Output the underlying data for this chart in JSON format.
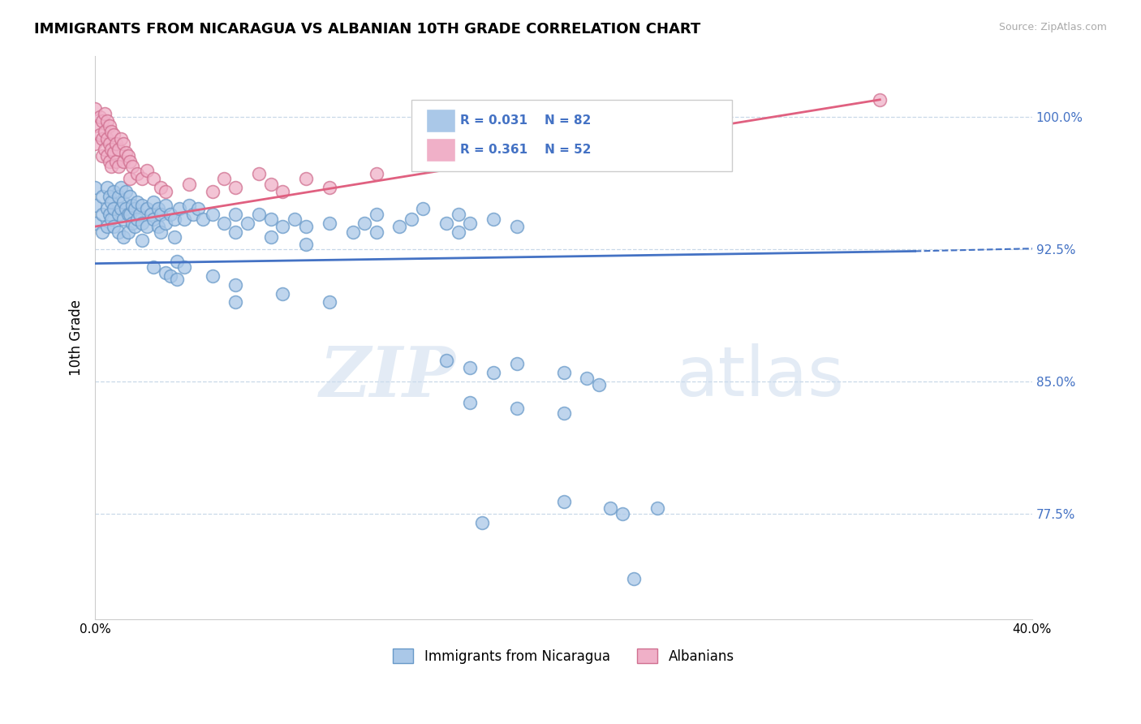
{
  "title": "IMMIGRANTS FROM NICARAGUA VS ALBANIAN 10TH GRADE CORRELATION CHART",
  "source_text": "Source: ZipAtlas.com",
  "ylabel": "10th Grade",
  "xlim": [
    0.0,
    0.4
  ],
  "ylim": [
    0.715,
    1.035
  ],
  "yticks": [
    0.775,
    0.85,
    0.925,
    1.0
  ],
  "ytick_labels": [
    "77.5%",
    "85.0%",
    "92.5%",
    "100.0%"
  ],
  "xticks": [
    0.0,
    0.4
  ],
  "xtick_labels": [
    "0.0%",
    "40.0%"
  ],
  "legend_r1": "R = 0.031",
  "legend_n1": "N = 82",
  "legend_r2": "R = 0.361",
  "legend_n2": "N = 52",
  "background_color": "#ffffff",
  "grid_color": "#c8d8e8",
  "watermark_zip": "ZIP",
  "watermark_atlas": "atlas",
  "blue_color": "#aac8e8",
  "pink_color": "#f0b0c8",
  "blue_line_color": "#4472c4",
  "pink_line_color": "#e06080",
  "blue_trendline_solid": [
    [
      0.0,
      0.917
    ],
    [
      0.35,
      0.924
    ]
  ],
  "blue_trendline_dashed": [
    [
      0.35,
      0.924
    ],
    [
      0.4,
      0.9255
    ]
  ],
  "pink_trendline": [
    [
      0.0,
      0.938
    ],
    [
      0.335,
      1.01
    ]
  ],
  "scatter_blue": [
    [
      0.0,
      0.96
    ],
    [
      0.0,
      0.95
    ],
    [
      0.0,
      0.94
    ],
    [
      0.003,
      0.955
    ],
    [
      0.003,
      0.945
    ],
    [
      0.003,
      0.935
    ],
    [
      0.005,
      0.96
    ],
    [
      0.005,
      0.948
    ],
    [
      0.005,
      0.938
    ],
    [
      0.006,
      0.955
    ],
    [
      0.006,
      0.945
    ],
    [
      0.007,
      0.952
    ],
    [
      0.007,
      0.942
    ],
    [
      0.008,
      0.958
    ],
    [
      0.008,
      0.948
    ],
    [
      0.008,
      0.938
    ],
    [
      0.01,
      0.955
    ],
    [
      0.01,
      0.945
    ],
    [
      0.01,
      0.935
    ],
    [
      0.011,
      0.96
    ],
    [
      0.011,
      0.948
    ],
    [
      0.012,
      0.952
    ],
    [
      0.012,
      0.942
    ],
    [
      0.012,
      0.932
    ],
    [
      0.013,
      0.958
    ],
    [
      0.013,
      0.948
    ],
    [
      0.014,
      0.945
    ],
    [
      0.014,
      0.935
    ],
    [
      0.015,
      0.955
    ],
    [
      0.015,
      0.945
    ],
    [
      0.016,
      0.95
    ],
    [
      0.016,
      0.94
    ],
    [
      0.017,
      0.948
    ],
    [
      0.017,
      0.938
    ],
    [
      0.018,
      0.952
    ],
    [
      0.018,
      0.942
    ],
    [
      0.019,
      0.945
    ],
    [
      0.02,
      0.95
    ],
    [
      0.02,
      0.94
    ],
    [
      0.02,
      0.93
    ],
    [
      0.022,
      0.948
    ],
    [
      0.022,
      0.938
    ],
    [
      0.024,
      0.945
    ],
    [
      0.025,
      0.952
    ],
    [
      0.025,
      0.942
    ],
    [
      0.027,
      0.948
    ],
    [
      0.027,
      0.938
    ],
    [
      0.028,
      0.945
    ],
    [
      0.028,
      0.935
    ],
    [
      0.03,
      0.95
    ],
    [
      0.03,
      0.94
    ],
    [
      0.032,
      0.945
    ],
    [
      0.034,
      0.942
    ],
    [
      0.034,
      0.932
    ],
    [
      0.036,
      0.948
    ],
    [
      0.038,
      0.942
    ],
    [
      0.04,
      0.95
    ],
    [
      0.042,
      0.945
    ],
    [
      0.044,
      0.948
    ],
    [
      0.046,
      0.942
    ],
    [
      0.05,
      0.945
    ],
    [
      0.055,
      0.94
    ],
    [
      0.06,
      0.945
    ],
    [
      0.06,
      0.935
    ],
    [
      0.065,
      0.94
    ],
    [
      0.07,
      0.945
    ],
    [
      0.075,
      0.942
    ],
    [
      0.075,
      0.932
    ],
    [
      0.08,
      0.938
    ],
    [
      0.085,
      0.942
    ],
    [
      0.09,
      0.938
    ],
    [
      0.09,
      0.928
    ],
    [
      0.1,
      0.94
    ],
    [
      0.11,
      0.935
    ],
    [
      0.115,
      0.94
    ],
    [
      0.12,
      0.945
    ],
    [
      0.12,
      0.935
    ],
    [
      0.13,
      0.938
    ],
    [
      0.135,
      0.942
    ],
    [
      0.14,
      0.948
    ],
    [
      0.15,
      0.94
    ],
    [
      0.155,
      0.945
    ],
    [
      0.155,
      0.935
    ],
    [
      0.16,
      0.94
    ],
    [
      0.17,
      0.942
    ],
    [
      0.18,
      0.938
    ],
    [
      0.025,
      0.915
    ],
    [
      0.03,
      0.912
    ],
    [
      0.032,
      0.91
    ],
    [
      0.035,
      0.918
    ],
    [
      0.035,
      0.908
    ],
    [
      0.038,
      0.915
    ],
    [
      0.05,
      0.91
    ],
    [
      0.06,
      0.905
    ],
    [
      0.06,
      0.895
    ],
    [
      0.08,
      0.9
    ],
    [
      0.1,
      0.895
    ],
    [
      0.15,
      0.862
    ],
    [
      0.16,
      0.858
    ],
    [
      0.17,
      0.855
    ],
    [
      0.18,
      0.86
    ],
    [
      0.2,
      0.855
    ],
    [
      0.21,
      0.852
    ],
    [
      0.215,
      0.848
    ],
    [
      0.16,
      0.838
    ],
    [
      0.18,
      0.835
    ],
    [
      0.2,
      0.832
    ],
    [
      0.165,
      0.77
    ],
    [
      0.2,
      0.782
    ],
    [
      0.22,
      0.778
    ],
    [
      0.225,
      0.775
    ],
    [
      0.24,
      0.778
    ],
    [
      0.23,
      0.738
    ]
  ],
  "scatter_pink": [
    [
      0.0,
      1.005
    ],
    [
      0.0,
      0.995
    ],
    [
      0.0,
      0.985
    ],
    [
      0.002,
      1.0
    ],
    [
      0.002,
      0.99
    ],
    [
      0.003,
      0.998
    ],
    [
      0.003,
      0.988
    ],
    [
      0.003,
      0.978
    ],
    [
      0.004,
      1.002
    ],
    [
      0.004,
      0.992
    ],
    [
      0.004,
      0.982
    ],
    [
      0.005,
      0.998
    ],
    [
      0.005,
      0.988
    ],
    [
      0.005,
      0.978
    ],
    [
      0.006,
      0.995
    ],
    [
      0.006,
      0.985
    ],
    [
      0.006,
      0.975
    ],
    [
      0.007,
      0.992
    ],
    [
      0.007,
      0.982
    ],
    [
      0.007,
      0.972
    ],
    [
      0.008,
      0.99
    ],
    [
      0.008,
      0.98
    ],
    [
      0.009,
      0.985
    ],
    [
      0.009,
      0.975
    ],
    [
      0.01,
      0.982
    ],
    [
      0.01,
      0.972
    ],
    [
      0.011,
      0.988
    ],
    [
      0.012,
      0.985
    ],
    [
      0.012,
      0.975
    ],
    [
      0.013,
      0.98
    ],
    [
      0.014,
      0.978
    ],
    [
      0.015,
      0.975
    ],
    [
      0.015,
      0.965
    ],
    [
      0.016,
      0.972
    ],
    [
      0.018,
      0.968
    ],
    [
      0.02,
      0.965
    ],
    [
      0.022,
      0.97
    ],
    [
      0.025,
      0.965
    ],
    [
      0.028,
      0.96
    ],
    [
      0.03,
      0.958
    ],
    [
      0.04,
      0.962
    ],
    [
      0.05,
      0.958
    ],
    [
      0.055,
      0.965
    ],
    [
      0.06,
      0.96
    ],
    [
      0.07,
      0.968
    ],
    [
      0.075,
      0.962
    ],
    [
      0.08,
      0.958
    ],
    [
      0.09,
      0.965
    ],
    [
      0.1,
      0.96
    ],
    [
      0.12,
      0.968
    ],
    [
      0.335,
      1.01
    ]
  ]
}
